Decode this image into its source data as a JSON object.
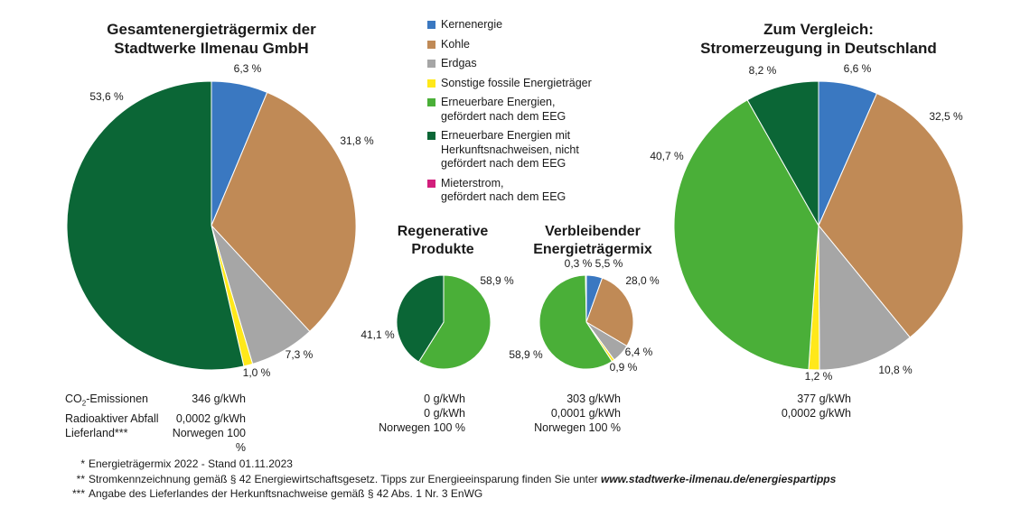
{
  "colors": {
    "kernenergie": "#3a78c1",
    "kohle": "#c08a56",
    "erdgas": "#a6a6a6",
    "sonstige": "#ffe81a",
    "erneuerbar_eeg": "#4aaf38",
    "erneuerbar_hkn": "#0b6636",
    "mieterstrom": "#d21f7c"
  },
  "legend": [
    {
      "label": "Kernenergie",
      "color_key": "kernenergie"
    },
    {
      "label": "Kohle",
      "color_key": "kohle"
    },
    {
      "label": "Erdgas",
      "color_key": "erdgas"
    },
    {
      "label": "Sonstige fossile Energieträger",
      "color_key": "sonstige"
    },
    {
      "label": "Erneuerbare Energien,\ngefördert nach dem EEG",
      "color_key": "erneuerbar_eeg"
    },
    {
      "label": "Erneuerbare Energien mit\nHerkunftsnachweisen, nicht\ngefördert nach dem EEG",
      "color_key": "erneuerbar_hkn"
    },
    {
      "label": "Mieterstrom,\ngefördert nach dem EEG",
      "color_key": "mieterstrom"
    }
  ],
  "chart_data": [
    {
      "type": "pie",
      "title": "Gesamtenergieträgermix der Stadtwerke Ilmenau GmbH",
      "slices": [
        {
          "name": "Kernenergie",
          "value": 6.3,
          "label": "6,3 %",
          "color_key": "kernenergie"
        },
        {
          "name": "Kohle",
          "value": 31.8,
          "label": "31,8 %",
          "color_key": "kohle"
        },
        {
          "name": "Erdgas",
          "value": 7.3,
          "label": "7,3 %",
          "color_key": "erdgas"
        },
        {
          "name": "Sonstige fossile Energieträger",
          "value": 1.0,
          "label": "1,0 %",
          "color_key": "sonstige"
        },
        {
          "name": "Erneuerbare Energien mit Herkunftsnachweisen, nicht gefördert nach dem EEG",
          "value": 53.6,
          "label": "53,6 %",
          "color_key": "erneuerbar_hkn"
        }
      ]
    },
    {
      "type": "pie",
      "title": "Regenerative Produkte",
      "slices": [
        {
          "name": "Erneuerbare Energien, gefördert nach dem EEG",
          "value": 58.9,
          "label": "58,9 %",
          "color_key": "erneuerbar_eeg"
        },
        {
          "name": "Erneuerbare Energien mit Herkunftsnachweisen, nicht gefördert nach dem EEG",
          "value": 41.1,
          "label": "41,1 %",
          "color_key": "erneuerbar_hkn"
        }
      ]
    },
    {
      "type": "pie",
      "title": "Verbleibender Energieträgermix",
      "slices": [
        {
          "name": "Kernenergie",
          "value": 5.5,
          "label": "5,5 %",
          "color_key": "kernenergie"
        },
        {
          "name": "Kohle",
          "value": 28.0,
          "label": "28,0 %",
          "color_key": "kohle"
        },
        {
          "name": "Erdgas",
          "value": 6.4,
          "label": "6,4 %",
          "color_key": "erdgas"
        },
        {
          "name": "Sonstige fossile Energieträger",
          "value": 0.9,
          "label": "0,9 %",
          "color_key": "sonstige"
        },
        {
          "name": "Erneuerbare Energien, gefördert nach dem EEG",
          "value": 58.9,
          "label": "58,9 %",
          "color_key": "erneuerbar_eeg"
        },
        {
          "name": "Erneuerbare Energien mit Herkunftsnachweisen, nicht gefördert nach dem EEG",
          "value": 0.3,
          "label": "0,3 %",
          "color_key": "erneuerbar_hkn"
        }
      ]
    },
    {
      "type": "pie",
      "title": "Zum Vergleich: Stromerzeugung in Deutschland",
      "slices": [
        {
          "name": "Kernenergie",
          "value": 6.6,
          "label": "6,6 %",
          "color_key": "kernenergie"
        },
        {
          "name": "Kohle",
          "value": 32.5,
          "label": "32,5 %",
          "color_key": "kohle"
        },
        {
          "name": "Erdgas",
          "value": 10.8,
          "label": "10,8 %",
          "color_key": "erdgas"
        },
        {
          "name": "Sonstige fossile Energieträger",
          "value": 1.2,
          "label": "1,2 %",
          "color_key": "sonstige"
        },
        {
          "name": "Erneuerbare Energien, gefördert nach dem EEG",
          "value": 40.7,
          "label": "40,7 %",
          "color_key": "erneuerbar_eeg"
        },
        {
          "name": "Erneuerbare Energien mit Herkunftsnachweisen, nicht gefördert nach dem EEG",
          "value": 8.2,
          "label": "8,2 %",
          "color_key": "erneuerbar_hkn"
        }
      ]
    }
  ],
  "titles": {
    "main_line1": "Gesamtenergieträgermix der",
    "main_line2": "Stadtwerke Ilmenau GmbH",
    "regen_line1": "Regenerative",
    "regen_line2": "Produkte",
    "rest_line1": "Verbleibender",
    "rest_line2": "Energieträgermix",
    "de_line1": "Zum Vergleich:",
    "de_line2": "Stromerzeugung in Deutschland"
  },
  "stats": {
    "labels": {
      "co2_prefix": "CO",
      "co2_sub": "2",
      "co2_suffix": "-Emissionen",
      "radio": "Radioaktiver Abfall",
      "land": "Lieferland***"
    },
    "main": {
      "co2": "346 g/kWh",
      "radio": "0,0002 g/kWh",
      "land": "Norwegen 100 %"
    },
    "regen": {
      "co2": "0 g/kWh",
      "radio": "0 g/kWh",
      "land": "Norwegen 100 %"
    },
    "rest": {
      "co2": "303 g/kWh",
      "radio": "0,0001 g/kWh",
      "land": "Norwegen 100 %"
    },
    "de": {
      "co2": "377 g/kWh",
      "radio": "0,0002 g/kWh"
    }
  },
  "footnotes": {
    "f1_mark": "*",
    "f1_text": "Energieträgermix 2022 - Stand  01.11.2023",
    "f2_mark": "**",
    "f2_text": "Stromkennzeichnung gemäß § 42 Energiewirtschaftsgesetz. Tipps zur Energieeinsparung finden Sie unter ",
    "f2_url": "www.stadtwerke-ilmenau.de/energiespartipps",
    "f3_mark": "***",
    "f3_text": "Angabe des Lieferlandes der Herkunftsnachweise gemäß § 42 Abs. 1 Nr. 3 EnWG"
  }
}
